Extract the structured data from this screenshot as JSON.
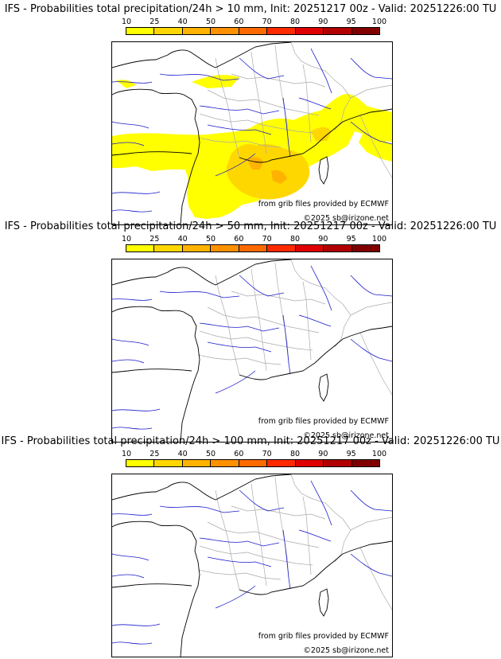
{
  "panels": [
    {
      "title": "IFS - Probabilities total precipitation/24h > 10 mm, Init: 20251217 00z - Valid: 20251226:00 TU",
      "threshold_mm": 10,
      "has_precip": true
    },
    {
      "title": "IFS - Probabilities total precipitation/24h > 50 mm, Init: 20251217 00z - Valid: 20251226:00 TU",
      "threshold_mm": 50,
      "has_precip": false
    },
    {
      "title": "IFS - Probabilities total precipitation/24h > 100 mm, Init: 20251217 00z - Valid: 20251226:00 TU",
      "threshold_mm": 100,
      "has_precip": false
    }
  ],
  "scale": {
    "ticks": [
      "10",
      "25",
      "40",
      "50",
      "60",
      "70",
      "80",
      "90",
      "95",
      "100"
    ],
    "colors": [
      "#ffff00",
      "#ffd700",
      "#ffb300",
      "#ff9000",
      "#ff6a00",
      "#ff2a00",
      "#e00000",
      "#b00000",
      "#800000"
    ]
  },
  "credits": {
    "source": "from grib files provided by ECMWF",
    "copyright": "©2025 sb@irizone.net"
  },
  "colors": {
    "river": "#1a1acc",
    "border": "#aaaaaa",
    "coast": "#000000",
    "prob_low": "#ffff00",
    "prob_mid": "#ffd700",
    "prob_high": "#ffb300"
  }
}
